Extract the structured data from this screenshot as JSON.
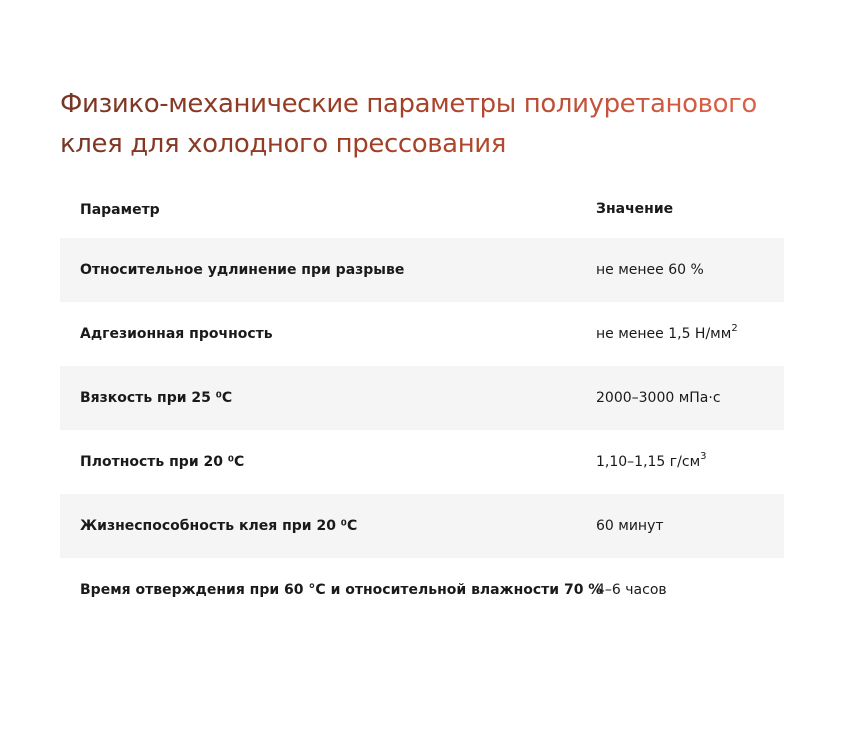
{
  "title": {
    "line1": "Физико-механические параметры полиуретанового",
    "line2": "клея для холодного прессования"
  },
  "table": {
    "headers": {
      "parameter": "Параметр",
      "value": "Значение"
    },
    "rows": [
      {
        "parameter": "Относительное удлинение при разрыве",
        "value": "не менее 60 %",
        "sup": ""
      },
      {
        "parameter": "Адгезионная прочность",
        "value": "не менее 1,5 Н/мм",
        "sup": "2"
      },
      {
        "parameter": "Вязкость при 25 ⁰С",
        "value": "2000–3000 мПа·с",
        "sup": ""
      },
      {
        "parameter": "Плотность при 20 ⁰С",
        "value": "1,10–1,15 г/см",
        "sup": "3"
      },
      {
        "parameter": "Жизнеспособность клея при 20 ⁰С",
        "value": "60 минут",
        "sup": ""
      },
      {
        "parameter": "Время отверждения при 60 °С и относительной влажности 70 %",
        "value": "4–6 часов",
        "sup": ""
      }
    ]
  },
  "colors": {
    "title_gradient_start": "#7a3524",
    "title_gradient_end": "#e1654a",
    "row_shade": "#f5f5f5",
    "text": "#1a1a1a"
  }
}
